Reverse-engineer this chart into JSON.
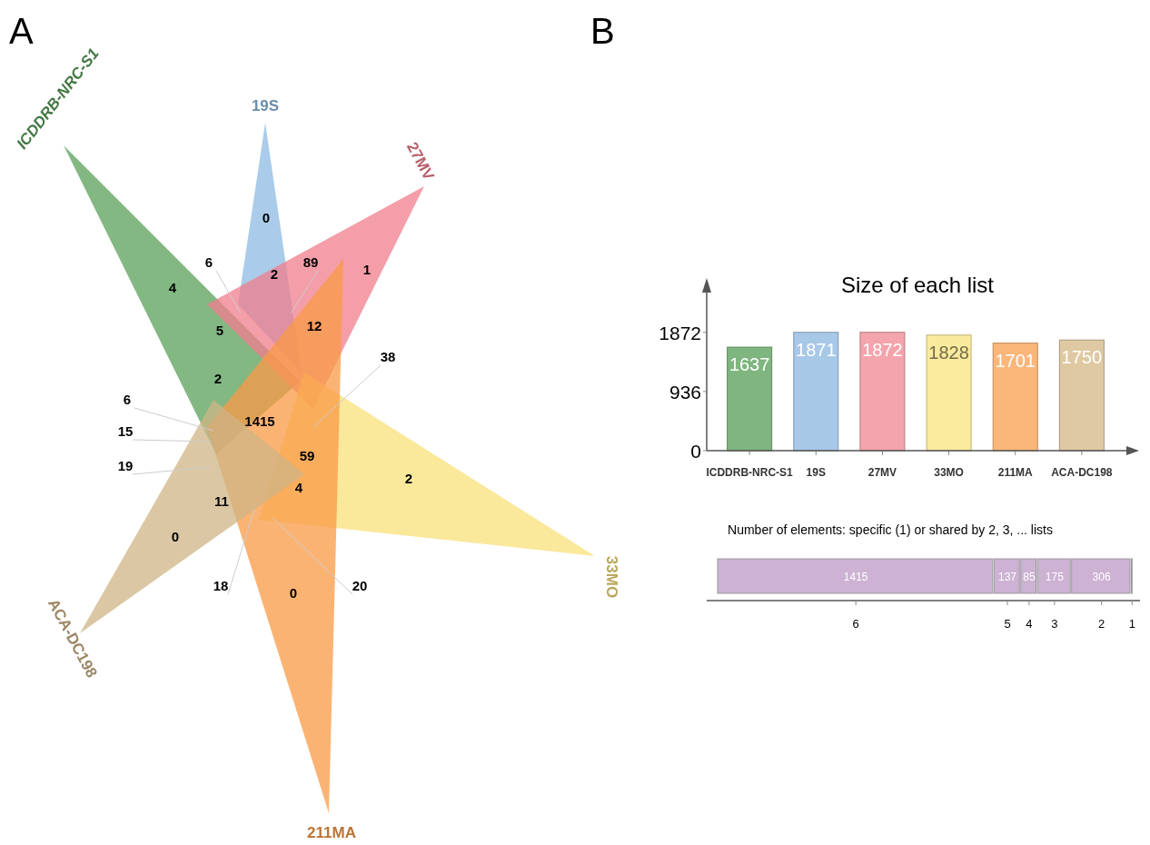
{
  "chart_data": [
    {
      "type": "other",
      "title": "A",
      "categories": [
        "ICDDRB-NRC-S1",
        "19S",
        "27MV",
        "33MO",
        "211MA",
        "ACA-DC198"
      ],
      "colors": [
        "#5aa05a",
        "#8dbbe3",
        "#f07e8c",
        "#f8e07a",
        "#f99a45",
        "#cfb486"
      ],
      "annotations": [
        "4",
        "0",
        "6",
        "89",
        "2",
        "1",
        "5",
        "12",
        "38",
        "2",
        "6",
        "15",
        "19",
        "1415",
        "59",
        "2",
        "4",
        "11",
        "0",
        "18",
        "0",
        "20"
      ]
    },
    {
      "type": "bar",
      "title": "Size of each list",
      "annotations": [
        "B"
      ],
      "categories": [
        "ICDDRB-NRC-S1",
        "19S",
        "27MV",
        "33MO",
        "211MA",
        "ACA-DC198"
      ],
      "values": [
        1637,
        1871,
        1872,
        1828,
        1701,
        1750
      ],
      "colors": [
        "#7fb57f",
        "#a8c8e8",
        "#f4a4ac",
        "#faea9e",
        "#fbb77a",
        "#dfc9a2"
      ],
      "ylim": [
        0,
        2500
      ],
      "yticks": [
        0,
        936,
        1872
      ],
      "data_labels": true
    },
    {
      "type": "bar",
      "title": "Number of elements: specific (1) or shared by 2, 3, ... lists",
      "orientation": "horizontal",
      "stacked": true,
      "categories": [
        null
      ],
      "series": [
        {
          "name": "6",
          "color": "#cdb2d4",
          "values": [
            1415
          ],
          "value_labels": [
            "1415"
          ]
        },
        {
          "name": "5",
          "color": "#cdb2d4",
          "values": [
            137
          ],
          "value_labels": [
            "137"
          ]
        },
        {
          "name": "4",
          "color": "#cdb2d4",
          "values": [
            85
          ],
          "value_labels": [
            "85"
          ]
        },
        {
          "name": "3",
          "color": "#cdb2d4",
          "values": [
            175
          ],
          "value_labels": [
            "175"
          ]
        },
        {
          "name": "2",
          "color": "#cdb2d4",
          "values": [
            306
          ],
          "value_labels": [
            "306"
          ]
        },
        {
          "name": "1",
          "color": "#cdb2d4",
          "values": [
            7
          ],
          "value_labels": [
            null
          ]
        }
      ]
    }
  ]
}
